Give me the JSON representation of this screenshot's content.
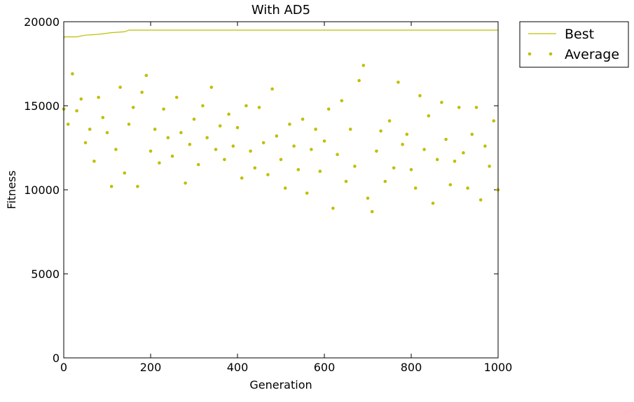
{
  "chart_data": {
    "type": "line",
    "title": "With AD5",
    "x_label": "Generation",
    "y_label": "Fitness",
    "xlim": [
      0,
      1000
    ],
    "xticks": [
      0,
      200,
      400,
      600,
      800,
      1000
    ],
    "ylim": [
      0,
      20000
    ],
    "yticks": [
      0,
      5000,
      10000,
      15000,
      20000
    ],
    "legend": "outside upper right",
    "series": [
      {
        "name": "Best",
        "color": "#bfbf00",
        "style": "line",
        "x": [
          0,
          2,
          30,
          50,
          80,
          110,
          140,
          150,
          1000
        ],
        "values": [
          19000,
          19100,
          19100,
          19200,
          19250,
          19350,
          19400,
          19500,
          19500
        ]
      },
      {
        "name": "Average",
        "color": "#bfbf00",
        "style": "markers",
        "x": [
          0,
          10,
          20,
          30,
          40,
          50,
          60,
          70,
          80,
          90,
          100,
          110,
          120,
          130,
          140,
          150,
          160,
          170,
          180,
          190,
          200,
          210,
          220,
          230,
          240,
          250,
          260,
          270,
          280,
          290,
          300,
          310,
          320,
          330,
          340,
          350,
          360,
          370,
          380,
          390,
          400,
          410,
          420,
          430,
          440,
          450,
          460,
          470,
          480,
          490,
          500,
          510,
          520,
          530,
          540,
          550,
          560,
          570,
          580,
          590,
          600,
          610,
          620,
          630,
          640,
          650,
          660,
          670,
          680,
          690,
          700,
          710,
          720,
          730,
          740,
          750,
          760,
          770,
          780,
          790,
          800,
          810,
          820,
          830,
          840,
          850,
          860,
          870,
          880,
          890,
          900,
          910,
          920,
          930,
          940,
          950,
          960,
          970,
          980,
          990,
          1000
        ],
        "values": [
          14800,
          13900,
          16900,
          14700,
          15400,
          12800,
          13600,
          11700,
          15500,
          14300,
          13400,
          10200,
          12400,
          16100,
          11000,
          13900,
          14900,
          10200,
          15800,
          16800,
          12300,
          13600,
          11600,
          14800,
          13100,
          12000,
          15500,
          13400,
          10400,
          12700,
          14200,
          11500,
          15000,
          13100,
          16100,
          12400,
          13800,
          11800,
          14500,
          12600,
          13700,
          10700,
          15000,
          12300,
          11300,
          14900,
          12800,
          10900,
          16000,
          13200,
          11800,
          10100,
          13900,
          12600,
          11200,
          14200,
          9800,
          12400,
          13600,
          11100,
          12900,
          14800,
          8900,
          12100,
          15300,
          10500,
          13600,
          11400,
          16500,
          17400,
          9500,
          8700,
          12300,
          13500,
          10500,
          14100,
          11300,
          16400,
          12700,
          13300,
          11200,
          10100,
          15600,
          12400,
          14400,
          9200,
          11800,
          15200,
          13000,
          10300,
          11700,
          14900,
          12200,
          10100,
          13300,
          14900,
          9400,
          12600,
          11400,
          14100,
          10000
        ]
      }
    ]
  }
}
